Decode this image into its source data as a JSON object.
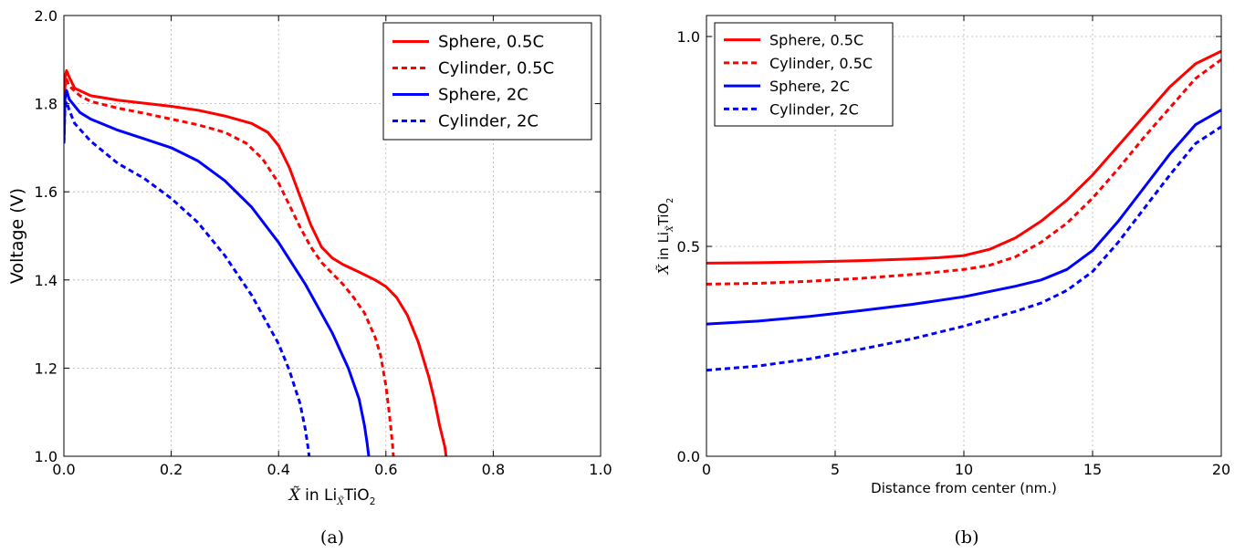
{
  "chart_data": [
    {
      "type": "line",
      "caption": "(a)",
      "xlabel": {
        "symbol": "X̃",
        "mid": " in Li",
        "sub": "X̃",
        "tail": "TiO",
        "sub2": "2"
      },
      "ylabel": "Voltage (V)",
      "xlim": [
        0,
        1
      ],
      "ylim": [
        1,
        2
      ],
      "xticks": [
        0,
        0.2,
        0.4,
        0.6,
        0.8,
        1.0
      ],
      "yticks": [
        1.0,
        1.2,
        1.4,
        1.6,
        1.8,
        2.0
      ],
      "xtick_labels": [
        "0.0",
        "0.2",
        "0.4",
        "0.6",
        "0.8",
        "1.0"
      ],
      "ytick_labels": [
        "1.0",
        "1.2",
        "1.4",
        "1.6",
        "1.8",
        "2.0"
      ],
      "grid": true,
      "legend_position": "top-right",
      "series": [
        {
          "name": "Sphere, 0.5C",
          "color": "#ff0000",
          "dash": "solid",
          "points": [
            [
              0,
              1.71
            ],
            [
              0.002,
              1.86
            ],
            [
              0.005,
              1.875
            ],
            [
              0.01,
              1.86
            ],
            [
              0.02,
              1.835
            ],
            [
              0.05,
              1.818
            ],
            [
              0.1,
              1.808
            ],
            [
              0.2,
              1.794
            ],
            [
              0.25,
              1.785
            ],
            [
              0.3,
              1.772
            ],
            [
              0.35,
              1.755
            ],
            [
              0.38,
              1.735
            ],
            [
              0.4,
              1.705
            ],
            [
              0.42,
              1.655
            ],
            [
              0.44,
              1.59
            ],
            [
              0.46,
              1.525
            ],
            [
              0.48,
              1.475
            ],
            [
              0.5,
              1.45
            ],
            [
              0.52,
              1.435
            ],
            [
              0.55,
              1.418
            ],
            [
              0.58,
              1.4
            ],
            [
              0.6,
              1.385
            ],
            [
              0.62,
              1.36
            ],
            [
              0.64,
              1.32
            ],
            [
              0.66,
              1.26
            ],
            [
              0.68,
              1.18
            ],
            [
              0.69,
              1.13
            ],
            [
              0.7,
              1.07
            ],
            [
              0.71,
              1.02
            ],
            [
              0.712,
              1.0
            ]
          ]
        },
        {
          "name": "Cylinder, 0.5C",
          "color": "#ff0000",
          "dash": "dashed",
          "points": [
            [
              0,
              1.71
            ],
            [
              0.002,
              1.84
            ],
            [
              0.005,
              1.855
            ],
            [
              0.01,
              1.84
            ],
            [
              0.03,
              1.818
            ],
            [
              0.05,
              1.805
            ],
            [
              0.1,
              1.79
            ],
            [
              0.15,
              1.778
            ],
            [
              0.2,
              1.765
            ],
            [
              0.25,
              1.752
            ],
            [
              0.3,
              1.735
            ],
            [
              0.34,
              1.71
            ],
            [
              0.37,
              1.675
            ],
            [
              0.4,
              1.62
            ],
            [
              0.42,
              1.57
            ],
            [
              0.44,
              1.52
            ],
            [
              0.46,
              1.475
            ],
            [
              0.48,
              1.44
            ],
            [
              0.5,
              1.415
            ],
            [
              0.52,
              1.39
            ],
            [
              0.54,
              1.36
            ],
            [
              0.56,
              1.325
            ],
            [
              0.58,
              1.27
            ],
            [
              0.59,
              1.23
            ],
            [
              0.6,
              1.16
            ],
            [
              0.607,
              1.09
            ],
            [
              0.612,
              1.03
            ],
            [
              0.614,
              1.0
            ]
          ]
        },
        {
          "name": "Sphere, 2C",
          "color": "#0000ff",
          "dash": "solid",
          "points": [
            [
              0,
              1.71
            ],
            [
              0.002,
              1.81
            ],
            [
              0.005,
              1.83
            ],
            [
              0.01,
              1.81
            ],
            [
              0.03,
              1.78
            ],
            [
              0.05,
              1.765
            ],
            [
              0.1,
              1.74
            ],
            [
              0.15,
              1.72
            ],
            [
              0.2,
              1.7
            ],
            [
              0.25,
              1.67
            ],
            [
              0.3,
              1.625
            ],
            [
              0.35,
              1.565
            ],
            [
              0.4,
              1.485
            ],
            [
              0.45,
              1.39
            ],
            [
              0.5,
              1.28
            ],
            [
              0.53,
              1.2
            ],
            [
              0.55,
              1.13
            ],
            [
              0.56,
              1.07
            ],
            [
              0.565,
              1.03
            ],
            [
              0.568,
              1.0
            ]
          ]
        },
        {
          "name": "Cylinder, 2C",
          "color": "#0000ff",
          "dash": "dashed",
          "points": [
            [
              0,
              1.71
            ],
            [
              0.002,
              1.79
            ],
            [
              0.005,
              1.805
            ],
            [
              0.01,
              1.785
            ],
            [
              0.02,
              1.755
            ],
            [
              0.05,
              1.715
            ],
            [
              0.1,
              1.665
            ],
            [
              0.15,
              1.63
            ],
            [
              0.2,
              1.585
            ],
            [
              0.25,
              1.53
            ],
            [
              0.3,
              1.455
            ],
            [
              0.35,
              1.365
            ],
            [
              0.4,
              1.255
            ],
            [
              0.42,
              1.195
            ],
            [
              0.44,
              1.12
            ],
            [
              0.45,
              1.06
            ],
            [
              0.455,
              1.02
            ],
            [
              0.457,
              1.0
            ]
          ]
        }
      ]
    },
    {
      "type": "line",
      "caption": "(b)",
      "xlabel": "Distance from center (nm.)",
      "ylabel": {
        "symbol": "X̃",
        "mid": " in Li",
        "sub": "X̃",
        "tail": "TiO",
        "sub2": "2"
      },
      "xlim": [
        0,
        20
      ],
      "ylim": [
        0,
        1.05
      ],
      "xticks": [
        0,
        5,
        10,
        15,
        20
      ],
      "yticks": [
        0.0,
        0.5,
        1.0
      ],
      "xtick_labels": [
        "0",
        "5",
        "10",
        "15",
        "20"
      ],
      "ytick_labels": [
        "0.0",
        "0.5",
        "1.0"
      ],
      "grid": true,
      "legend_position": "top-left",
      "series": [
        {
          "name": "Sphere, 0.5C",
          "color": "#ff0000",
          "dash": "solid",
          "points": [
            [
              0,
              0.46
            ],
            [
              2,
              0.461
            ],
            [
              4,
              0.463
            ],
            [
              6,
              0.466
            ],
            [
              8,
              0.47
            ],
            [
              9,
              0.473
            ],
            [
              10,
              0.478
            ],
            [
              11,
              0.493
            ],
            [
              12,
              0.52
            ],
            [
              13,
              0.56
            ],
            [
              14,
              0.61
            ],
            [
              15,
              0.67
            ],
            [
              16,
              0.74
            ],
            [
              17,
              0.81
            ],
            [
              18,
              0.88
            ],
            [
              19,
              0.935
            ],
            [
              20,
              0.965
            ]
          ]
        },
        {
          "name": "Cylinder, 0.5C",
          "color": "#ff0000",
          "dash": "dashed",
          "points": [
            [
              0,
              0.41
            ],
            [
              2,
              0.412
            ],
            [
              4,
              0.417
            ],
            [
              6,
              0.424
            ],
            [
              8,
              0.433
            ],
            [
              10,
              0.445
            ],
            [
              11,
              0.455
            ],
            [
              12,
              0.475
            ],
            [
              13,
              0.51
            ],
            [
              14,
              0.555
            ],
            [
              15,
              0.615
            ],
            [
              16,
              0.685
            ],
            [
              17,
              0.76
            ],
            [
              18,
              0.83
            ],
            [
              19,
              0.9
            ],
            [
              20,
              0.945
            ]
          ]
        },
        {
          "name": "Sphere, 2C",
          "color": "#0000ff",
          "dash": "solid",
          "points": [
            [
              0,
              0.315
            ],
            [
              2,
              0.322
            ],
            [
              4,
              0.333
            ],
            [
              6,
              0.347
            ],
            [
              8,
              0.362
            ],
            [
              10,
              0.38
            ],
            [
              12,
              0.405
            ],
            [
              13,
              0.42
            ],
            [
              14,
              0.445
            ],
            [
              15,
              0.49
            ],
            [
              16,
              0.56
            ],
            [
              17,
              0.64
            ],
            [
              18,
              0.72
            ],
            [
              19,
              0.79
            ],
            [
              20,
              0.825
            ]
          ]
        },
        {
          "name": "Cylinder, 2C",
          "color": "#0000ff",
          "dash": "dashed",
          "points": [
            [
              0,
              0.205
            ],
            [
              2,
              0.215
            ],
            [
              4,
              0.232
            ],
            [
              6,
              0.255
            ],
            [
              8,
              0.28
            ],
            [
              10,
              0.31
            ],
            [
              12,
              0.345
            ],
            [
              13,
              0.365
            ],
            [
              14,
              0.395
            ],
            [
              15,
              0.44
            ],
            [
              16,
              0.51
            ],
            [
              17,
              0.59
            ],
            [
              18,
              0.67
            ],
            [
              19,
              0.745
            ],
            [
              20,
              0.785
            ]
          ]
        }
      ]
    }
  ]
}
